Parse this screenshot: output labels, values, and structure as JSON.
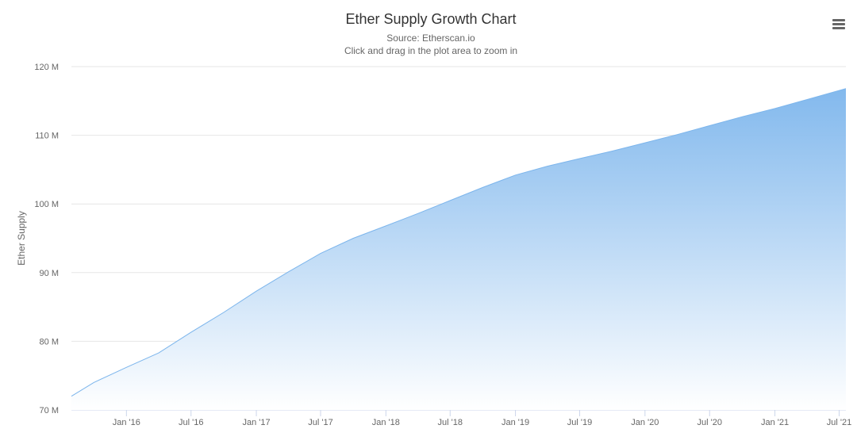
{
  "header": {
    "title": "Ether Supply Growth Chart",
    "subtitle_source": "Source: Etherscan.io",
    "subtitle_hint": "Click and drag in the plot area to zoom in"
  },
  "toolbar": {
    "menu_icon": "hamburger-menu-icon"
  },
  "colors": {
    "line": "#7cb5ec",
    "fill_top": "#7cb5ec",
    "fill_bottom": "#ffffff",
    "grid": "#e6e6e6",
    "text": "#666666",
    "title": "#333333"
  },
  "chart_data": {
    "type": "area",
    "title": "Ether Supply Growth Chart",
    "subtitle": "Source: Etherscan.io",
    "xlabel": "",
    "ylabel": "Ether Supply",
    "ylim": [
      70000000,
      120000000
    ],
    "xlim": [
      "2015-07-30",
      "2021-07-20"
    ],
    "grid": true,
    "legend": "none",
    "y_ticks": [
      {
        "value": 70000000,
        "label": "70 M"
      },
      {
        "value": 80000000,
        "label": "80 M"
      },
      {
        "value": 90000000,
        "label": "90 M"
      },
      {
        "value": 100000000,
        "label": "100 M"
      },
      {
        "value": 110000000,
        "label": "110 M"
      },
      {
        "value": 120000000,
        "label": "120 M"
      }
    ],
    "x_ticks": [
      {
        "date": "2016-01-01",
        "label": "Jan '16"
      },
      {
        "date": "2016-07-01",
        "label": "Jul '16"
      },
      {
        "date": "2017-01-01",
        "label": "Jan '17"
      },
      {
        "date": "2017-07-01",
        "label": "Jul '17"
      },
      {
        "date": "2018-01-01",
        "label": "Jan '18"
      },
      {
        "date": "2018-07-01",
        "label": "Jul '18"
      },
      {
        "date": "2019-01-01",
        "label": "Jan '19"
      },
      {
        "date": "2019-07-01",
        "label": "Jul '19"
      },
      {
        "date": "2020-01-01",
        "label": "Jan '20"
      },
      {
        "date": "2020-07-01",
        "label": "Jul '20"
      },
      {
        "date": "2021-01-01",
        "label": "Jan '21"
      },
      {
        "date": "2021-07-01",
        "label": "Jul '21"
      }
    ],
    "series": [
      {
        "x": [
          "2015-07-30",
          "2015-10-01",
          "2016-01-01",
          "2016-04-01",
          "2016-07-01",
          "2016-10-01",
          "2017-01-01",
          "2017-04-01",
          "2017-07-01",
          "2017-10-01",
          "2018-01-01",
          "2018-04-01",
          "2018-07-01",
          "2018-10-01",
          "2019-01-01",
          "2019-04-01",
          "2019-07-01",
          "2019-10-01",
          "2020-01-01",
          "2020-04-01",
          "2020-07-01",
          "2020-10-01",
          "2021-01-01",
          "2021-04-01",
          "2021-07-20"
        ],
        "values": [
          72000000,
          74000000,
          76200000,
          78300000,
          81300000,
          84200000,
          87300000,
          90100000,
          92800000,
          95000000,
          96800000,
          98600000,
          100500000,
          102400000,
          104200000,
          105500000,
          106600000,
          107700000,
          108900000,
          110100000,
          111400000,
          112700000,
          113900000,
          115200000,
          116800000
        ]
      }
    ]
  }
}
